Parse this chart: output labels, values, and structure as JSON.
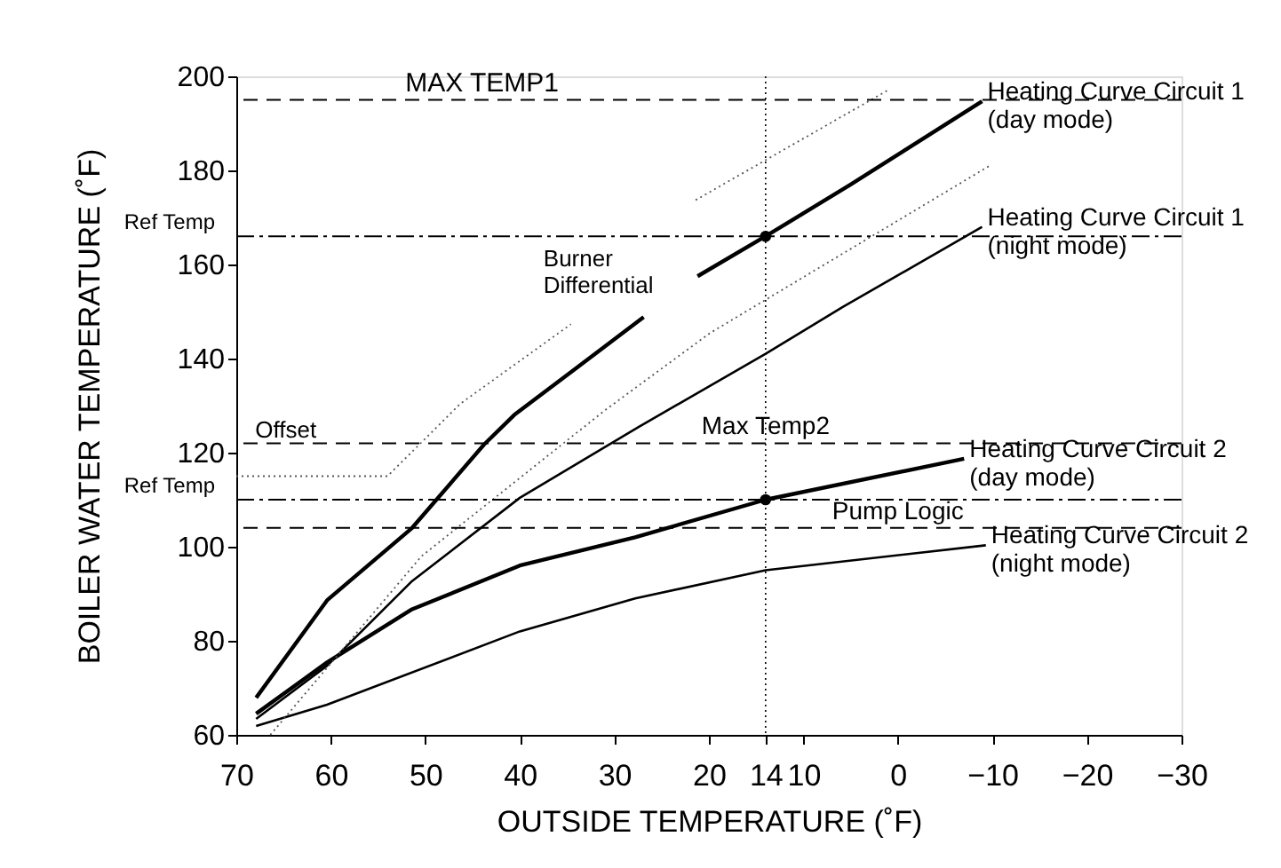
{
  "chart_data": {
    "type": "line",
    "xlabel": "OUTSIDE TEMPERATURE (˚F)",
    "ylabel": "BOILER WATER TEMPERATURE (˚F)",
    "xlim": [
      70,
      -30
    ],
    "xticks": [
      70,
      60,
      50,
      40,
      30,
      20,
      14,
      10,
      0,
      -10,
      -20,
      -30
    ],
    "ylim": [
      60,
      200
    ],
    "yticks": [
      60,
      80,
      100,
      120,
      140,
      160,
      180,
      200
    ],
    "grid": false,
    "marker": "none",
    "line_style": "solid",
    "series": [
      {
        "name": "Heating Curve Circuit 1\n(day mode)",
        "color": "#000000",
        "x": [
          67.9,
          60.4,
          51.4,
          43.8,
          40.6,
          34,
          26.9,
          24,
          21.2,
          14,
          5,
          -8.9
        ],
        "values": [
          67.9,
          88.6,
          104,
          121.7,
          128,
          138,
          148.8,
          null,
          157.5,
          166,
          177,
          194.7
        ]
      },
      {
        "name": "Heating Curve Circuit 1\n(night mode)",
        "color": "#000000",
        "x": [
          67.9,
          60.4,
          51.4,
          40,
          27.4,
          14,
          5.8,
          -8.9
        ],
        "values": [
          63.4,
          74.7,
          92.7,
          110.4,
          125.5,
          141,
          151,
          168
        ]
      },
      {
        "name": "Heating Curve Circuit 2\n(day mode)",
        "color": "#000000",
        "x": [
          67.9,
          60.4,
          51.4,
          40,
          27.8,
          14,
          -7
        ],
        "values": [
          64.5,
          75.4,
          86.7,
          96,
          102,
          110,
          118.7
        ]
      },
      {
        "name": "Heating Curve Circuit 2\n(night mode)",
        "color": "#000000",
        "x": [
          67.9,
          60.4,
          40,
          27.8,
          14,
          -9.3
        ],
        "values": [
          61.9,
          66.4,
          82,
          89,
          95,
          100.3
        ]
      },
      {
        "color": "#555555",
        "line_style": "dotted",
        "x": [
          70,
          54,
          46.3,
          34.6,
          28,
          21.4,
          1.1
        ],
        "values": [
          115,
          115,
          130.4,
          147.3,
          null,
          173.7,
          197
        ]
      },
      {
        "color": "#555555",
        "line_style": "dotted",
        "x": [
          66.4,
          50.4,
          31,
          19.9,
          -9.7
        ],
        "values": [
          60,
          98,
          129,
          145.4,
          181
        ]
      },
      {
        "type": "scatter",
        "marker": "circle",
        "color": "#000000",
        "x": [
          14,
          14
        ],
        "values": [
          166,
          110
        ]
      }
    ],
    "ref_lines": [
      {
        "axis": "y",
        "value": 195,
        "label": "MAX TEMP1",
        "line_style": "dashed",
        "color": "#000000"
      },
      {
        "axis": "y",
        "value": 122,
        "label": "Max Temp2",
        "line_style": "dashed",
        "color": "#000000"
      },
      {
        "axis": "y",
        "value": 104,
        "label": "Pump Logic",
        "line_style": "dashed",
        "color": "#000000"
      },
      {
        "axis": "y",
        "value": 166,
        "label": "Ref Temp",
        "line_style": "dashed",
        "color": "#000000"
      },
      {
        "axis": "y",
        "value": 110,
        "label": "Ref Temp",
        "line_style": "dashed",
        "color": "#000000"
      },
      {
        "axis": "x",
        "value": 14,
        "line_style": "dotted",
        "color": "#000000"
      }
    ],
    "annotations": [
      {
        "text": "Offset",
        "x": 68,
        "y": 122
      },
      "Burner\nDifferential"
    ]
  }
}
